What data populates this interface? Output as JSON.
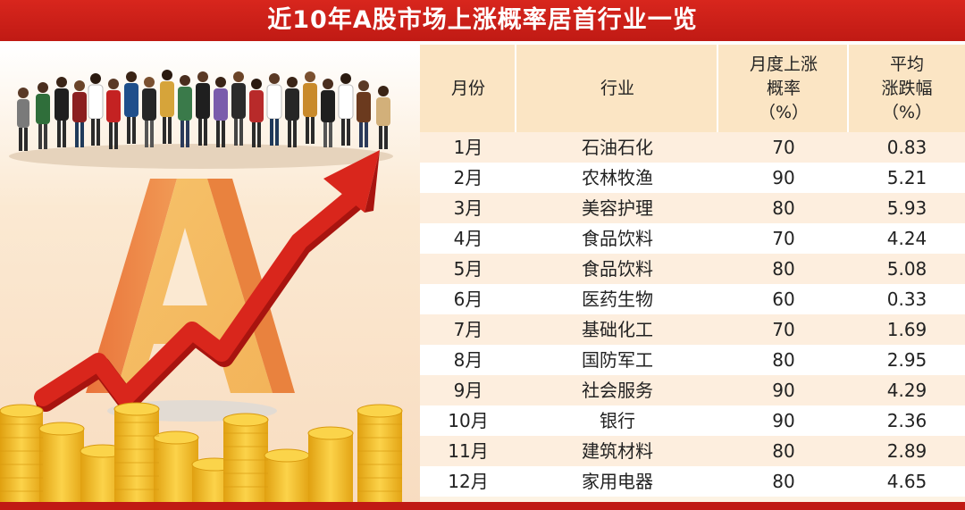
{
  "title": "近10年A股市场上涨概率居首行业一览",
  "table": {
    "headers": {
      "month": "月份",
      "industry": "行业",
      "prob_line1": "月度上涨",
      "prob_line2": "概率",
      "prob_line3": "（%）",
      "chg_line1": "平均",
      "chg_line2": "涨跌幅",
      "chg_line3": "（%）"
    },
    "rows": [
      {
        "month": "1月",
        "industry": "石油石化",
        "prob": "70",
        "chg": "0.83"
      },
      {
        "month": "2月",
        "industry": "农林牧渔",
        "prob": "90",
        "chg": "5.21"
      },
      {
        "month": "3月",
        "industry": "美容护理",
        "prob": "80",
        "chg": "5.93"
      },
      {
        "month": "4月",
        "industry": "食品饮料",
        "prob": "70",
        "chg": "4.24"
      },
      {
        "month": "5月",
        "industry": "食品饮料",
        "prob": "80",
        "chg": "5.08"
      },
      {
        "month": "6月",
        "industry": "医药生物",
        "prob": "60",
        "chg": "0.33"
      },
      {
        "month": "7月",
        "industry": "基础化工",
        "prob": "70",
        "chg": "1.69"
      },
      {
        "month": "8月",
        "industry": "国防军工",
        "prob": "80",
        "chg": "2.95"
      },
      {
        "month": "9月",
        "industry": "社会服务",
        "prob": "90",
        "chg": "4.29"
      },
      {
        "month": "10月",
        "industry": "银行",
        "prob": "90",
        "chg": "2.36"
      },
      {
        "month": "11月",
        "industry": "建筑材料",
        "prob": "80",
        "chg": "2.89"
      },
      {
        "month": "12月",
        "industry": "家用电器",
        "prob": "80",
        "chg": "4.65"
      }
    ]
  },
  "colors": {
    "title_red": "#c01a14",
    "header_bg": "#fbe5c4",
    "row_stripe": "#fdeede",
    "arrow_red": "#d4221a",
    "coin_gold": "#f2b51e",
    "letter_orange": "#ee8a44"
  },
  "illustration": {
    "icons": [
      "crowd-icon",
      "letter-a-icon",
      "rising-arrow-icon",
      "coin-stacks-icon"
    ]
  }
}
